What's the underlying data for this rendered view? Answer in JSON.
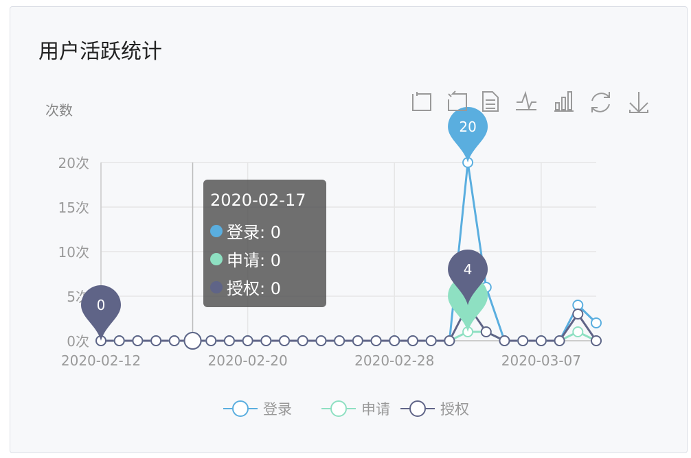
{
  "title": "用户活跃统计",
  "toolbox": [
    "zoom-icon",
    "zoom-reset-icon",
    "data-view-icon",
    "line-chart-icon",
    "bar-chart-icon",
    "restore-icon",
    "download-icon"
  ],
  "chart_data": {
    "type": "line",
    "ylabel": "次数",
    "ylim": [
      0,
      20
    ],
    "yticks": [
      "0次",
      "5次",
      "10次",
      "15次",
      "20次"
    ],
    "xtick_labels": [
      "2020-02-12",
      "2020-02-20",
      "2020-02-28",
      "2020-03-07"
    ],
    "x": [
      "2020-02-12",
      "2020-02-13",
      "2020-02-14",
      "2020-02-15",
      "2020-02-16",
      "2020-02-17",
      "2020-02-18",
      "2020-02-19",
      "2020-02-20",
      "2020-02-21",
      "2020-02-22",
      "2020-02-23",
      "2020-02-24",
      "2020-02-25",
      "2020-02-26",
      "2020-02-27",
      "2020-02-28",
      "2020-02-29",
      "2020-03-01",
      "2020-03-02",
      "2020-03-03",
      "2020-03-04",
      "2020-03-05",
      "2020-03-06",
      "2020-03-07",
      "2020-03-08",
      "2020-03-09",
      "2020-03-10"
    ],
    "series": [
      {
        "name": "登录",
        "color": "#5aaedf",
        "values": [
          0,
          0,
          0,
          0,
          0,
          0,
          0,
          0,
          0,
          0,
          0,
          0,
          0,
          0,
          0,
          0,
          0,
          0,
          0,
          0,
          20,
          6,
          0,
          0,
          0,
          0,
          4,
          2
        ]
      },
      {
        "name": "申请",
        "color": "#8ee0c2",
        "values": [
          0,
          0,
          0,
          0,
          0,
          0,
          0,
          0,
          0,
          0,
          0,
          0,
          0,
          0,
          0,
          0,
          0,
          0,
          0,
          0,
          1,
          1,
          0,
          0,
          0,
          0,
          1,
          0
        ]
      },
      {
        "name": "授权",
        "color": "#5f6487",
        "values": [
          0,
          0,
          0,
          0,
          0,
          0,
          0,
          0,
          0,
          0,
          0,
          0,
          0,
          0,
          0,
          0,
          0,
          0,
          0,
          0,
          4,
          1,
          0,
          0,
          0,
          0,
          3,
          0
        ]
      }
    ],
    "mark_points": [
      {
        "series": "登录",
        "index": 20,
        "label": "20"
      },
      {
        "series": "申请",
        "index": 20,
        "label": ""
      },
      {
        "series": "授权",
        "index": 20,
        "label": "4"
      },
      {
        "series": "授权",
        "index": 0,
        "label": "0"
      }
    ],
    "legend": "bottom",
    "grid": true
  },
  "tooltip": {
    "date": "2020-02-17",
    "rows": [
      {
        "label": "登录: 0",
        "color": "#5aaedf"
      },
      {
        "label": "申请: 0",
        "color": "#8ee0c2"
      },
      {
        "label": "授权: 0",
        "color": "#5f6487"
      }
    ]
  }
}
